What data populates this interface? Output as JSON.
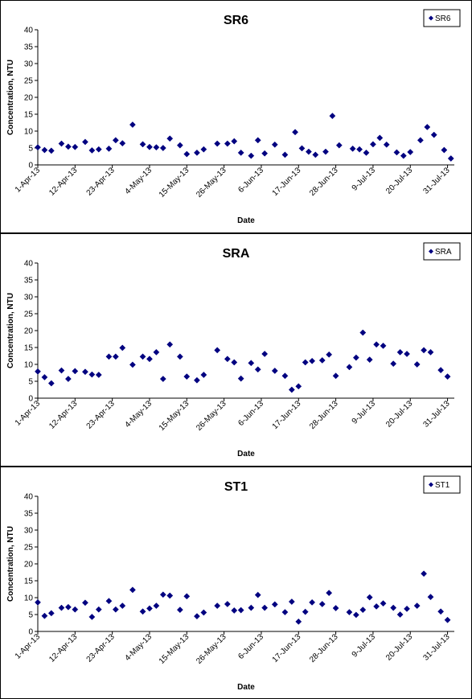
{
  "chart_data": [
    {
      "type": "scatter",
      "title": "SR6",
      "xlabel": "Date",
      "ylabel": "Concentration, NTU",
      "ylim": [
        0,
        40
      ],
      "yticks": [
        0,
        5,
        10,
        15,
        20,
        25,
        30,
        35,
        40
      ],
      "xlim": [
        "2013-04-01",
        "2013-07-31"
      ],
      "xticks": [
        "1-Apr-13",
        "12-Apr-13",
        "23-Apr-13",
        "4-May-13",
        "15-May-13",
        "26-May-13",
        "6-Jun-13",
        "17-Jun-13",
        "28-Jun-13",
        "9-Jul-13",
        "20-Jul-13",
        "31-Jul-13"
      ],
      "legend": "top-right",
      "color": "#000080",
      "grid": false,
      "series": [
        {
          "name": "SR6",
          "points": [
            [
              "2013-04-01",
              5.2
            ],
            [
              "2013-04-03",
              4.4
            ],
            [
              "2013-04-05",
              4.2
            ],
            [
              "2013-04-08",
              6.3
            ],
            [
              "2013-04-10",
              5.4
            ],
            [
              "2013-04-12",
              5.3
            ],
            [
              "2013-04-15",
              6.8
            ],
            [
              "2013-04-17",
              4.3
            ],
            [
              "2013-04-19",
              4.6
            ],
            [
              "2013-04-22",
              4.8
            ],
            [
              "2013-04-24",
              7.3
            ],
            [
              "2013-04-26",
              6.4
            ],
            [
              "2013-04-29",
              11.9
            ],
            [
              "2013-05-02",
              6.1
            ],
            [
              "2013-05-04",
              5.3
            ],
            [
              "2013-05-06",
              5.2
            ],
            [
              "2013-05-08",
              5.0
            ],
            [
              "2013-05-10",
              7.8
            ],
            [
              "2013-05-13",
              5.8
            ],
            [
              "2013-05-15",
              3.2
            ],
            [
              "2013-05-18",
              3.6
            ],
            [
              "2013-05-20",
              4.6
            ],
            [
              "2013-05-24",
              6.3
            ],
            [
              "2013-05-27",
              6.3
            ],
            [
              "2013-05-29",
              7.0
            ],
            [
              "2013-05-31",
              3.6
            ],
            [
              "2013-06-03",
              2.7
            ],
            [
              "2013-06-05",
              7.3
            ],
            [
              "2013-06-07",
              3.4
            ],
            [
              "2013-06-10",
              6.0
            ],
            [
              "2013-06-13",
              3.0
            ],
            [
              "2013-06-16",
              9.7
            ],
            [
              "2013-06-18",
              4.9
            ],
            [
              "2013-06-20",
              3.9
            ],
            [
              "2013-06-22",
              3.0
            ],
            [
              "2013-06-25",
              3.9
            ],
            [
              "2013-06-27",
              14.5
            ],
            [
              "2013-06-29",
              5.8
            ],
            [
              "2013-07-03",
              4.8
            ],
            [
              "2013-07-05",
              4.6
            ],
            [
              "2013-07-07",
              3.6
            ],
            [
              "2013-07-09",
              6.1
            ],
            [
              "2013-07-11",
              8.0
            ],
            [
              "2013-07-13",
              6.0
            ],
            [
              "2013-07-16",
              3.7
            ],
            [
              "2013-07-18",
              2.7
            ],
            [
              "2013-07-20",
              3.8
            ],
            [
              "2013-07-23",
              7.3
            ],
            [
              "2013-07-25",
              11.2
            ],
            [
              "2013-07-27",
              8.9
            ],
            [
              "2013-07-30",
              4.4
            ],
            [
              "2013-08-01",
              1.9
            ]
          ]
        }
      ]
    },
    {
      "type": "scatter",
      "title": "SRA",
      "xlabel": "Date",
      "ylabel": "Concentration, NTU",
      "ylim": [
        0,
        40
      ],
      "yticks": [
        0,
        5,
        10,
        15,
        20,
        25,
        30,
        35,
        40
      ],
      "xlim": [
        "2013-04-01",
        "2013-07-31"
      ],
      "xticks": [
        "1-Apr-13",
        "12-Apr-13",
        "23-Apr-13",
        "4-May-13",
        "15-May-13",
        "26-May-13",
        "6-Jun-13",
        "17-Jun-13",
        "28-Jun-13",
        "9-Jul-13",
        "20-Jul-13",
        "31-Jul-13"
      ],
      "legend": "top-right",
      "color": "#000080",
      "grid": false,
      "series": [
        {
          "name": "SRA",
          "points": [
            [
              "2013-04-01",
              7.9
            ],
            [
              "2013-04-03",
              6.2
            ],
            [
              "2013-04-05",
              4.4
            ],
            [
              "2013-04-08",
              8.2
            ],
            [
              "2013-04-10",
              5.7
            ],
            [
              "2013-04-12",
              8.0
            ],
            [
              "2013-04-15",
              7.8
            ],
            [
              "2013-04-17",
              7.0
            ],
            [
              "2013-04-19",
              6.9
            ],
            [
              "2013-04-22",
              12.3
            ],
            [
              "2013-04-24",
              12.3
            ],
            [
              "2013-04-26",
              14.9
            ],
            [
              "2013-04-29",
              9.9
            ],
            [
              "2013-05-02",
              12.3
            ],
            [
              "2013-05-04",
              11.6
            ],
            [
              "2013-05-06",
              13.6
            ],
            [
              "2013-05-08",
              5.7
            ],
            [
              "2013-05-10",
              15.9
            ],
            [
              "2013-05-13",
              12.3
            ],
            [
              "2013-05-15",
              6.4
            ],
            [
              "2013-05-18",
              5.3
            ],
            [
              "2013-05-20",
              6.9
            ],
            [
              "2013-05-24",
              14.2
            ],
            [
              "2013-05-27",
              11.6
            ],
            [
              "2013-05-29",
              10.6
            ],
            [
              "2013-05-31",
              5.8
            ],
            [
              "2013-06-03",
              10.4
            ],
            [
              "2013-06-05",
              8.5
            ],
            [
              "2013-06-07",
              13.1
            ],
            [
              "2013-06-10",
              8.1
            ],
            [
              "2013-06-13",
              6.6
            ],
            [
              "2013-06-15",
              2.5
            ],
            [
              "2013-06-17",
              3.5
            ],
            [
              "2013-06-19",
              10.6
            ],
            [
              "2013-06-21",
              11.0
            ],
            [
              "2013-06-24",
              11.2
            ],
            [
              "2013-06-26",
              12.9
            ],
            [
              "2013-06-28",
              6.6
            ],
            [
              "2013-07-02",
              9.2
            ],
            [
              "2013-07-04",
              12.0
            ],
            [
              "2013-07-06",
              19.4
            ],
            [
              "2013-07-08",
              11.4
            ],
            [
              "2013-07-10",
              15.9
            ],
            [
              "2013-07-12",
              15.5
            ],
            [
              "2013-07-15",
              10.2
            ],
            [
              "2013-07-17",
              13.6
            ],
            [
              "2013-07-19",
              13.1
            ],
            [
              "2013-07-22",
              10.0
            ],
            [
              "2013-07-24",
              14.2
            ],
            [
              "2013-07-26",
              13.6
            ],
            [
              "2013-07-29",
              8.3
            ],
            [
              "2013-07-31",
              6.4
            ]
          ]
        }
      ]
    },
    {
      "type": "scatter",
      "title": "ST1",
      "xlabel": "Date",
      "ylabel": "Concentration, NTU",
      "ylim": [
        0,
        40
      ],
      "yticks": [
        0,
        5,
        10,
        15,
        20,
        25,
        30,
        35,
        40
      ],
      "xlim": [
        "2013-04-01",
        "2013-07-31"
      ],
      "xticks": [
        "1-Apr-13",
        "12-Apr-13",
        "23-Apr-13",
        "4-May-13",
        "15-May-13",
        "26-May-13",
        "6-Jun-13",
        "17-Jun-13",
        "28-Jun-13",
        "9-Jul-13",
        "20-Jul-13",
        "31-Jul-13"
      ],
      "legend": "top-right",
      "color": "#000080",
      "grid": false,
      "series": [
        {
          "name": "ST1",
          "points": [
            [
              "2013-04-01",
              8.6
            ],
            [
              "2013-04-03",
              4.6
            ],
            [
              "2013-04-05",
              5.4
            ],
            [
              "2013-04-08",
              7.0
            ],
            [
              "2013-04-10",
              7.2
            ],
            [
              "2013-04-12",
              6.5
            ],
            [
              "2013-04-15",
              8.5
            ],
            [
              "2013-04-17",
              4.3
            ],
            [
              "2013-04-19",
              6.5
            ],
            [
              "2013-04-22",
              9.0
            ],
            [
              "2013-04-24",
              6.5
            ],
            [
              "2013-04-26",
              7.6
            ],
            [
              "2013-04-29",
              12.3
            ],
            [
              "2013-05-02",
              5.9
            ],
            [
              "2013-05-04",
              6.8
            ],
            [
              "2013-05-06",
              7.6
            ],
            [
              "2013-05-08",
              10.9
            ],
            [
              "2013-05-10",
              10.6
            ],
            [
              "2013-05-13",
              6.4
            ],
            [
              "2013-05-15",
              10.4
            ],
            [
              "2013-05-18",
              4.5
            ],
            [
              "2013-05-20",
              5.6
            ],
            [
              "2013-05-24",
              7.6
            ],
            [
              "2013-05-27",
              8.1
            ],
            [
              "2013-05-29",
              6.2
            ],
            [
              "2013-05-31",
              6.3
            ],
            [
              "2013-06-03",
              7.0
            ],
            [
              "2013-06-05",
              10.8
            ],
            [
              "2013-06-07",
              7.0
            ],
            [
              "2013-06-10",
              8.0
            ],
            [
              "2013-06-13",
              5.7
            ],
            [
              "2013-06-15",
              8.8
            ],
            [
              "2013-06-17",
              2.9
            ],
            [
              "2013-06-19",
              5.8
            ],
            [
              "2013-06-21",
              8.6
            ],
            [
              "2013-06-24",
              8.1
            ],
            [
              "2013-06-26",
              11.4
            ],
            [
              "2013-06-28",
              6.9
            ],
            [
              "2013-07-02",
              5.7
            ],
            [
              "2013-07-04",
              4.9
            ],
            [
              "2013-07-06",
              6.4
            ],
            [
              "2013-07-08",
              10.1
            ],
            [
              "2013-07-10",
              7.4
            ],
            [
              "2013-07-12",
              8.3
            ],
            [
              "2013-07-15",
              7.0
            ],
            [
              "2013-07-17",
              5.0
            ],
            [
              "2013-07-19",
              6.7
            ],
            [
              "2013-07-22",
              7.6
            ],
            [
              "2013-07-24",
              17.1
            ],
            [
              "2013-07-26",
              10.2
            ],
            [
              "2013-07-29",
              5.9
            ],
            [
              "2013-07-31",
              3.4
            ]
          ]
        }
      ]
    }
  ]
}
